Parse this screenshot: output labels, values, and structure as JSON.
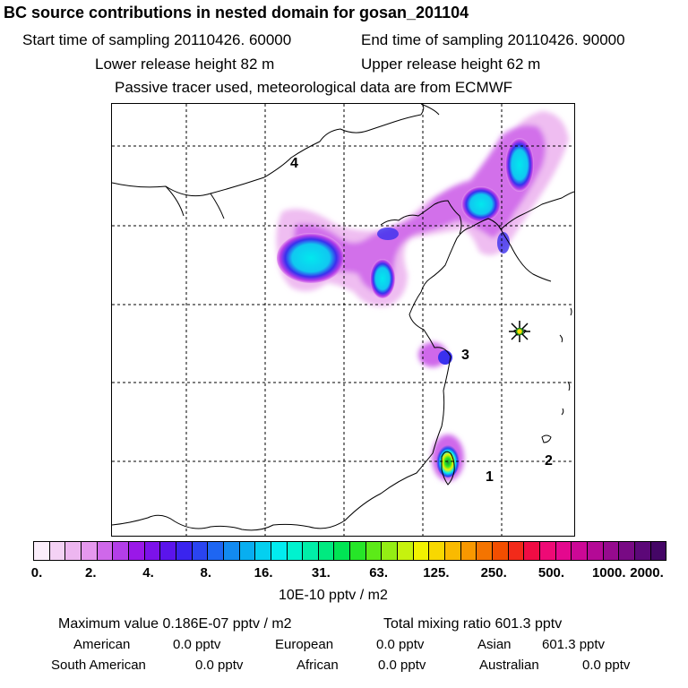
{
  "header": {
    "title": "BC  source contributions in nested domain for gosan_201104",
    "start_sampling": "Start time of sampling 20110426. 60000",
    "end_sampling": "End time of sampling 20110426. 90000",
    "lower_release": "Lower release height   82 m",
    "upper_release": "Upper release height   62 m",
    "tracer_note": "Passive tracer used, meteorological data are from ECMWF"
  },
  "map": {
    "labels": [
      "4",
      "3",
      "1",
      "2"
    ],
    "receptor_icon": "star-marker-icon"
  },
  "colorbar": {
    "ticks": [
      "0.",
      "2.",
      "4.",
      "8.",
      "16.",
      "31.",
      "63.",
      "125.",
      "250.",
      "500.",
      "1000.",
      "2000."
    ],
    "colors": [
      "#fbeefb",
      "#f4d2f5",
      "#edb6f0",
      "#e598ee",
      "#cf68ea",
      "#b33ee8",
      "#9a18e8",
      "#7c12ea",
      "#5b14ec",
      "#3a24ee",
      "#2a44f0",
      "#1e66f2",
      "#128af0",
      "#08aef0",
      "#04d0f0",
      "#02ecf0",
      "#00f2cf",
      "#00eea8",
      "#00ea80",
      "#00e454",
      "#26e628",
      "#5cea18",
      "#94ee14",
      "#c6f20e",
      "#f2f200",
      "#f8d800",
      "#faba00",
      "#f89800",
      "#f47400",
      "#f24e00",
      "#f22a1a",
      "#f00c44",
      "#ee0a76",
      "#e4088e",
      "#cc0896",
      "#b40a96",
      "#960a8e",
      "#780a84",
      "#5c0878",
      "#440666"
    ],
    "unit": "10E-10 pptv / m2"
  },
  "stats": {
    "max_value": "Maximum value  0.186E-07 pptv / m2",
    "total_mixing": "Total mixing ratio      601.3 pptv",
    "american_label": "American",
    "american_value": "0.0 pptv",
    "european_label": "European",
    "european_value": "0.0 pptv",
    "asian_label": "Asian",
    "asian_value": "601.3 pptv",
    "south_american_label": "South American",
    "south_american_value": "0.0 pptv",
    "african_label": "African",
    "african_value": "0.0 pptv",
    "australian_label": "Australian",
    "australian_value": "0.0 pptv"
  }
}
